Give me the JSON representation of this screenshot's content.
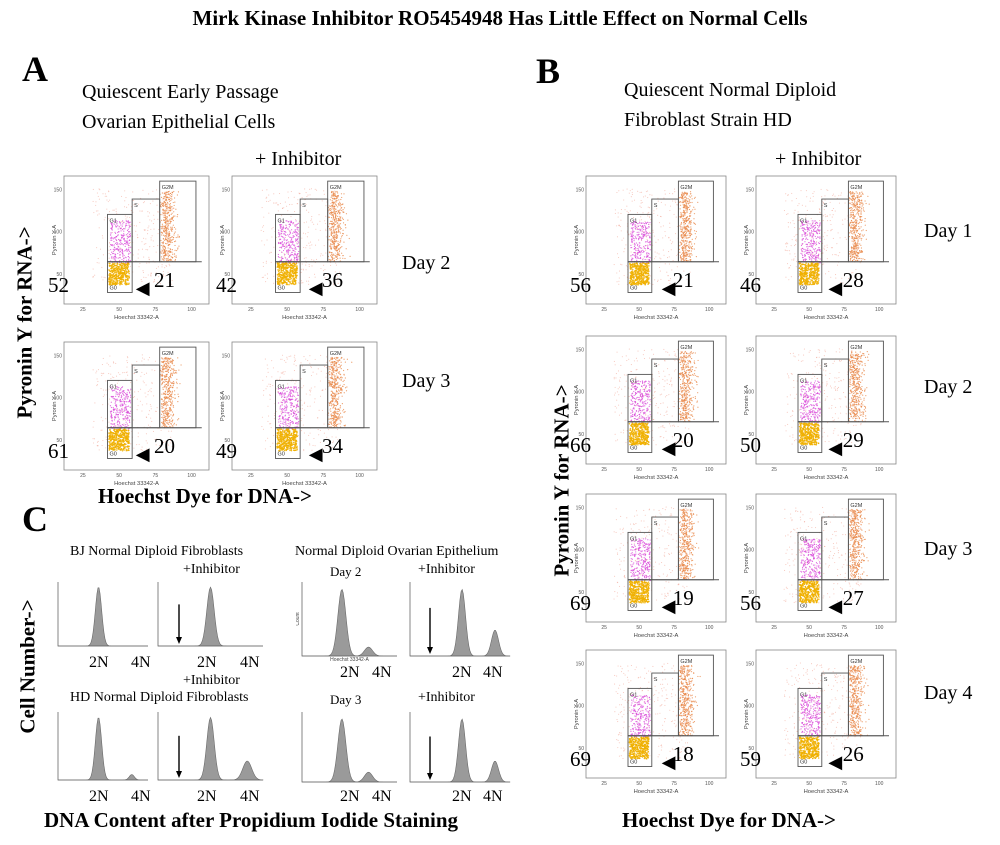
{
  "title": "Mirk Kinase Inhibitor RO5454948 Has Little Effect on Normal Cells",
  "panelA": {
    "letter": "A",
    "subtitle_line1": "Quiescent Early Passage",
    "subtitle_line2": "Ovarian Epithelial Cells",
    "inhibitor_label": "+ Inhibitor",
    "y_axis_label": "Pyronin Y for RNA->",
    "x_axis_label": "Hoechst Dye for DNA->",
    "rows": [
      {
        "day": "Day 2",
        "control": {
          "g0": "52",
          "g2m": "21"
        },
        "inhibitor": {
          "g0": "42",
          "g2m": "36"
        }
      },
      {
        "day": "Day 3",
        "control": {
          "g0": "61",
          "g2m": "20"
        },
        "inhibitor": {
          "g0": "49",
          "g2m": "34"
        }
      }
    ]
  },
  "panelB": {
    "letter": "B",
    "subtitle_line1": "Quiescent Normal Diploid",
    "subtitle_line2": "Fibroblast Strain HD",
    "inhibitor_label": "+ Inhibitor",
    "y_axis_label": "Pyronin Y for RNA->",
    "x_axis_label": "Hoechst Dye for DNA->",
    "rows": [
      {
        "day": "Day 1",
        "control": {
          "g0": "56",
          "g2m": "21"
        },
        "inhibitor": {
          "g0": "46",
          "g2m": "28"
        }
      },
      {
        "day": "Day 2",
        "control": {
          "g0": "66",
          "g2m": "20"
        },
        "inhibitor": {
          "g0": "50",
          "g2m": "29"
        }
      },
      {
        "day": "Day 3",
        "control": {
          "g0": "69",
          "g2m": "19"
        },
        "inhibitor": {
          "g0": "56",
          "g2m": "27"
        }
      },
      {
        "day": "Day 4",
        "control": {
          "g0": "69",
          "g2m": "18"
        },
        "inhibitor": {
          "g0": "59",
          "g2m": "26"
        }
      }
    ]
  },
  "flow_labels": {
    "x_axis": "Hoechst 33342-A",
    "y_axis": "Pyronin Y-A",
    "gate_g0": "G0",
    "gate_g1": "G1",
    "gate_s": "S",
    "gate_g2m": "G2M",
    "x_ticks": [
      "25",
      "50",
      "75",
      "100"
    ],
    "y_ticks": [
      "50",
      "100",
      "150"
    ]
  },
  "panelC": {
    "letter": "C",
    "y_axis_label": "Cell Number->",
    "x_axis_label": "DNA Content after Propidium Iodide Staining",
    "bj_header": "BJ Normal Diploid Fibroblasts",
    "hd_header": "HD Normal Diploid Fibroblasts",
    "ovarian_header": "Normal Diploid Ovarian Epithelium",
    "inhibitor_label": "+Inhibitor",
    "day2": "Day 2",
    "day3": "Day 3",
    "label_2n": "2N",
    "label_4n": "4N",
    "hist_x_axis": "Hoechst 33342-A",
    "hist_y_axis": "Count"
  }
}
